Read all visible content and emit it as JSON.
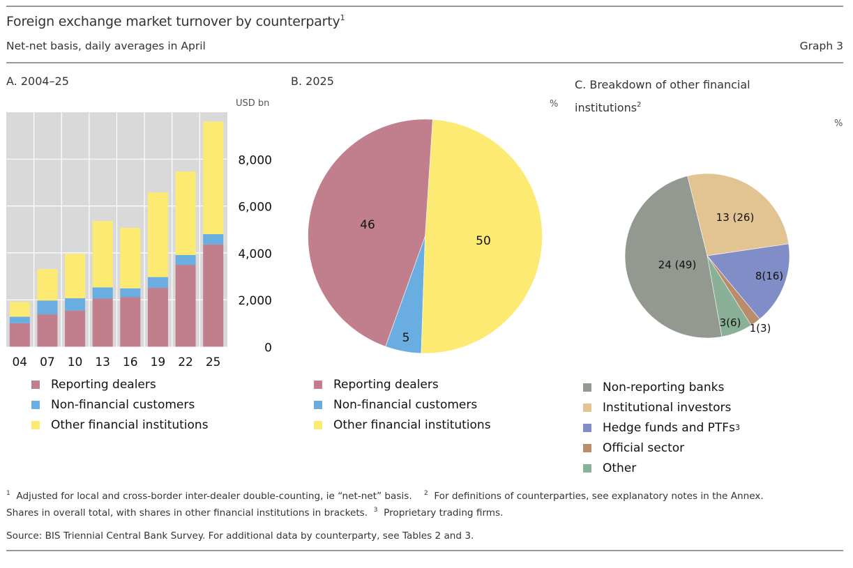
{
  "header": {
    "title": "Foreign exchange market turnover by counterparty",
    "title_note": "1",
    "subtitle": "Net-net basis, daily averages in April",
    "graph_number": "Graph 3"
  },
  "colors": {
    "reporting_dealers": "#c17f8e",
    "non_financial_customers": "#6aade0",
    "other_financial_institutions": "#fdea72",
    "non_reporting_banks": "#939990",
    "institutional_investors": "#e2c392",
    "hedge_funds_ptfs": "#818dc6",
    "official_sector": "#b98c6a",
    "other": "#8ab098",
    "plot_bg": "#d9d9d9"
  },
  "chart_data": [
    {
      "type": "bar",
      "stacked": true,
      "title": "A. 2004–25",
      "unit": "USD bn",
      "categories": [
        "04",
        "07",
        "10",
        "13",
        "16",
        "19",
        "22",
        "25"
      ],
      "series": [
        {
          "name": "Reporting dealers",
          "color_key": "reporting_dealers",
          "values": [
            1000,
            1380,
            1540,
            2050,
            2110,
            2510,
            3490,
            4360
          ]
        },
        {
          "name": "Non-financial customers",
          "color_key": "non_financial_customers",
          "values": [
            280,
            590,
            530,
            480,
            380,
            460,
            420,
            440
          ]
        },
        {
          "name": "Other financial institutions",
          "color_key": "other_financial_institutions",
          "values": [
            630,
            1340,
            1890,
            2830,
            2580,
            3610,
            3560,
            4800
          ]
        }
      ],
      "yticks": [
        "0",
        "2,000",
        "4,000",
        "6,000",
        "8,000"
      ],
      "ytick_values": [
        0,
        2000,
        4000,
        6000,
        8000
      ],
      "ylim": [
        0,
        10000
      ],
      "y_axis_side": "right",
      "grid": true,
      "legend": [
        "Reporting dealers",
        "Non-financial customers",
        "Other financial institutions"
      ],
      "legend_position": "bottom"
    },
    {
      "type": "pie",
      "title": "B. 2025",
      "unit": "%",
      "slices": [
        {
          "name": "Other financial institutions",
          "value": 50,
          "label": "50",
          "color_key": "other_financial_institutions"
        },
        {
          "name": "Non-financial customers",
          "value": 5,
          "label": "5",
          "color_key": "non_financial_customers"
        },
        {
          "name": "Reporting dealers",
          "value": 46,
          "label": "46",
          "color_key": "reporting_dealers"
        }
      ],
      "legend": [
        "Reporting dealers",
        "Non-financial customers",
        "Other financial institutions"
      ],
      "legend_position": "bottom"
    },
    {
      "type": "pie",
      "title": "C. Breakdown of other financial institutions",
      "title_note": "2",
      "unit": "%",
      "slices": [
        {
          "name": "Institutional investors",
          "value": 13,
          "share_in_ofi": 26,
          "label": "13 (26)",
          "color_key": "institutional_investors"
        },
        {
          "name": "Hedge funds and PTFs",
          "value": 8,
          "share_in_ofi": 16,
          "label": "8(16)",
          "color_key": "hedge_funds_ptfs"
        },
        {
          "name": "Official sector",
          "value": 1,
          "share_in_ofi": 3,
          "label": "1(3)",
          "color_key": "official_sector"
        },
        {
          "name": "Other",
          "value": 3,
          "share_in_ofi": 6,
          "label": "3(6)",
          "color_key": "other"
        },
        {
          "name": "Non-reporting banks",
          "value": 24,
          "share_in_ofi": 49,
          "label": "24 (49)",
          "color_key": "non_reporting_banks"
        }
      ],
      "legend": [
        "Non-reporting banks",
        "Institutional investors",
        "Hedge funds and PTFs",
        "Official sector",
        "Other"
      ],
      "legend_note_on": "Hedge funds and PTFs",
      "legend_note": "3",
      "legend_position": "bottom"
    }
  ],
  "footnotes": {
    "note1_mark": "1",
    "note1": "Adjusted for local and cross-border inter-dealer double-counting, ie “net-net” basis.",
    "note2_mark": "2",
    "note2": "For definitions of counterparties, see explanatory notes in the Annex. Shares in overall total, with shares in other financial institutions in brackets.",
    "note2_line1": "For definitions of counterparties, see explanatory notes in the Annex.",
    "note2_line2": "Shares in overall total, with shares in other financial institutions in brackets.",
    "note3_mark": "3",
    "note3": "Proprietary trading firms.",
    "source": "Source: BIS Triennial Central Bank Survey. For additional data by counterparty, see Tables 2 and 3."
  }
}
